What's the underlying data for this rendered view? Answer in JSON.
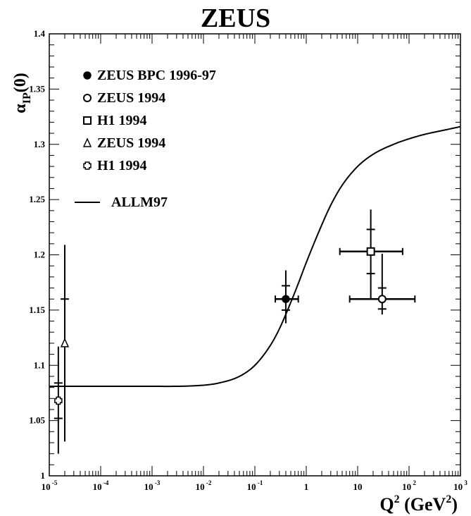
{
  "chart_data": {
    "type": "scatter",
    "title": "ZEUS",
    "xscale": "log",
    "xlim": [
      1e-05,
      1000
    ],
    "ylim": [
      1.0,
      1.4
    ],
    "x_tick_labels": [
      {
        "base": "10",
        "exp": "-5",
        "value": 1e-05
      },
      {
        "base": "10",
        "exp": "-4",
        "value": 0.0001
      },
      {
        "base": "10",
        "exp": "-3",
        "value": 0.001
      },
      {
        "base": "10",
        "exp": "-2",
        "value": 0.01
      },
      {
        "base": "10",
        "exp": "-1",
        "value": 0.1
      },
      {
        "base": "1",
        "exp": "",
        "value": 1
      },
      {
        "base": "10",
        "exp": "",
        "value": 10
      },
      {
        "base": "10",
        "exp": "2",
        "value": 100
      },
      {
        "base": "10",
        "exp": "3",
        "value": 1000
      }
    ],
    "y_ticks": [
      1.0,
      1.05,
      1.1,
      1.15,
      1.2,
      1.25,
      1.3,
      1.35,
      1.4
    ],
    "y_tick_labels": [
      "1",
      "1.05",
      "1.1",
      "1.15",
      "1.2",
      "1.25",
      "1.3",
      "1.35",
      "1.4"
    ],
    "ylabel": {
      "base": "α",
      "sub": "IP",
      "suffix": "(0)"
    },
    "xlabel": {
      "base": "Q",
      "sup": "2",
      "unit_prefix": "(GeV",
      "unit_sup": "2",
      "unit_suffix": ")"
    },
    "series": [
      {
        "name": "ZEUS BPC 1996-97",
        "marker": "filled-circle",
        "points": [
          {
            "x": 0.4,
            "y": 1.16,
            "xerr": [
              0.25,
              0.7
            ],
            "yerr_stat": [
              1.15,
              1.172
            ],
            "yerr_tot": [
              1.138,
              1.186
            ]
          }
        ]
      },
      {
        "name": "ZEUS 1994",
        "marker": "open-circle",
        "points": [
          {
            "x": 30,
            "y": 1.16,
            "xerr": [
              7,
              130
            ],
            "yerr_stat": [
              1.151,
              1.17
            ],
            "yerr_tot": [
              1.146,
              1.201
            ]
          }
        ]
      },
      {
        "name": "H1 1994",
        "marker": "open-square",
        "points": [
          {
            "x": 18,
            "y": 1.203,
            "xerr": [
              4.5,
              75
            ],
            "yerr_stat": [
              1.183,
              1.223
            ],
            "yerr_tot": [
              1.16,
              1.241
            ]
          }
        ]
      },
      {
        "name": "ZEUS 1994",
        "marker": "open-triangle",
        "points": [
          {
            "x": 2e-05,
            "y": 1.12,
            "xerr": null,
            "yerr_stat": [
              1.081,
              1.16
            ],
            "yerr_tot": [
              1.031,
              1.209
            ]
          }
        ]
      },
      {
        "name": "H1 1994",
        "marker": "cross",
        "points": [
          {
            "x": 1.5e-05,
            "y": 1.068,
            "xerr": null,
            "yerr_stat": [
              1.052,
              1.084
            ],
            "yerr_tot": [
              1.02,
              1.117
            ]
          }
        ]
      }
    ],
    "curve": {
      "name": "ALLM97",
      "x": [
        1e-05,
        0.0001,
        0.001,
        0.01,
        0.02,
        0.05,
        0.1,
        0.2,
        0.3,
        0.5,
        0.7,
        1,
        2,
        3,
        5,
        10,
        20,
        50,
        100,
        200,
        500,
        1000
      ],
      "y": [
        1.081,
        1.081,
        1.081,
        1.082,
        1.084,
        1.09,
        1.1,
        1.118,
        1.133,
        1.157,
        1.174,
        1.193,
        1.227,
        1.245,
        1.263,
        1.28,
        1.291,
        1.3,
        1.305,
        1.309,
        1.313,
        1.316
      ]
    },
    "legend_position": "top-left"
  }
}
